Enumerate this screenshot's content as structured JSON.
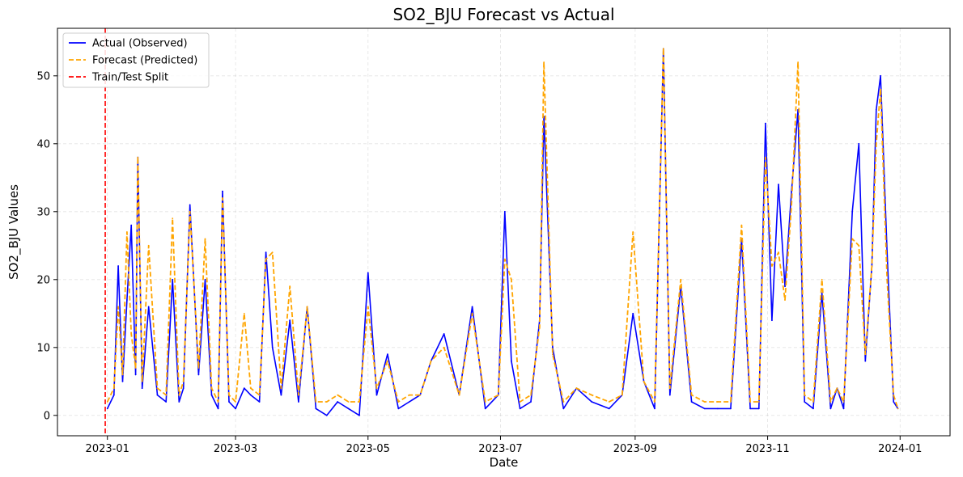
{
  "chart_data": {
    "type": "line",
    "title": "SO2_BJU Forecast vs Actual",
    "xlabel": "Date",
    "ylabel": "SO2_BJU Values",
    "xlim": [
      "2022-12-09",
      "2024-01-24"
    ],
    "ylim": [
      -3,
      57
    ],
    "x_ticks": [
      "2023-01",
      "2023-03",
      "2023-05",
      "2023-07",
      "2023-09",
      "2023-11",
      "2024-01"
    ],
    "y_ticks": [
      0,
      10,
      20,
      30,
      40,
      50
    ],
    "grid": true,
    "legend_position": "top-left",
    "colors": {
      "actual": "#0000ff",
      "forecast": "#ffa500",
      "split": "#ff0000"
    },
    "split_date": "2022-12-31",
    "legend": [
      "Actual (Observed)",
      "Forecast (Predicted)",
      "Train/Test Split"
    ],
    "series": [
      {
        "name": "Actual (Observed)",
        "x": [
          "2023-01-01",
          "2023-01-04",
          "2023-01-06",
          "2023-01-08",
          "2023-01-10",
          "2023-01-12",
          "2023-01-14",
          "2023-01-15",
          "2023-01-17",
          "2023-01-20",
          "2023-01-24",
          "2023-01-28",
          "2023-01-31",
          "2023-02-03",
          "2023-02-05",
          "2023-02-08",
          "2023-02-12",
          "2023-02-15",
          "2023-02-18",
          "2023-02-21",
          "2023-02-23",
          "2023-02-26",
          "2023-03-01",
          "2023-03-05",
          "2023-03-08",
          "2023-03-12",
          "2023-03-15",
          "2023-03-18",
          "2023-03-22",
          "2023-03-26",
          "2023-03-30",
          "2023-04-03",
          "2023-04-07",
          "2023-04-12",
          "2023-04-17",
          "2023-04-22",
          "2023-04-27",
          "2023-05-01",
          "2023-05-05",
          "2023-05-10",
          "2023-05-15",
          "2023-05-20",
          "2023-05-25",
          "2023-05-30",
          "2023-06-05",
          "2023-06-12",
          "2023-06-18",
          "2023-06-24",
          "2023-06-30",
          "2023-07-03",
          "2023-07-06",
          "2023-07-10",
          "2023-07-15",
          "2023-07-19",
          "2023-07-21",
          "2023-07-25",
          "2023-07-30",
          "2023-08-05",
          "2023-08-12",
          "2023-08-20",
          "2023-08-26",
          "2023-08-31",
          "2023-09-05",
          "2023-09-10",
          "2023-09-14",
          "2023-09-17",
          "2023-09-22",
          "2023-09-27",
          "2023-10-03",
          "2023-10-09",
          "2023-10-15",
          "2023-10-20",
          "2023-10-24",
          "2023-10-28",
          "2023-10-31",
          "2023-11-03",
          "2023-11-06",
          "2023-11-09",
          "2023-11-12",
          "2023-11-15",
          "2023-11-18",
          "2023-11-22",
          "2023-11-26",
          "2023-11-30",
          "2023-12-03",
          "2023-12-06",
          "2023-12-10",
          "2023-12-13",
          "2023-12-16",
          "2023-12-19",
          "2023-12-21",
          "2023-12-23",
          "2023-12-26",
          "2023-12-29",
          "2023-12-31"
        ],
        "values": [
          1,
          3,
          22,
          5,
          17,
          28,
          6,
          38,
          4,
          16,
          3,
          2,
          20,
          2,
          4,
          31,
          6,
          20,
          3,
          1,
          33,
          2,
          1,
          4,
          3,
          2,
          24,
          10,
          3,
          14,
          2,
          16,
          1,
          0,
          2,
          1,
          0,
          21,
          3,
          9,
          1,
          2,
          3,
          8,
          12,
          3,
          16,
          1,
          3,
          30,
          8,
          1,
          2,
          14,
          44,
          10,
          1,
          4,
          2,
          1,
          3,
          15,
          5,
          1,
          54,
          3,
          19,
          2,
          1,
          1,
          1,
          26,
          1,
          1,
          43,
          14,
          34,
          19,
          33,
          45,
          2,
          1,
          18,
          1,
          4,
          1,
          30,
          40,
          8,
          22,
          45,
          50,
          24,
          2,
          1
        ]
      },
      {
        "name": "Forecast (Predicted)",
        "x": [
          "2023-01-01",
          "2023-01-04",
          "2023-01-06",
          "2023-01-08",
          "2023-01-10",
          "2023-01-12",
          "2023-01-14",
          "2023-01-15",
          "2023-01-17",
          "2023-01-20",
          "2023-01-24",
          "2023-01-28",
          "2023-01-31",
          "2023-02-03",
          "2023-02-05",
          "2023-02-08",
          "2023-02-12",
          "2023-02-15",
          "2023-02-18",
          "2023-02-21",
          "2023-02-23",
          "2023-02-26",
          "2023-03-01",
          "2023-03-05",
          "2023-03-08",
          "2023-03-12",
          "2023-03-15",
          "2023-03-18",
          "2023-03-22",
          "2023-03-26",
          "2023-03-30",
          "2023-04-03",
          "2023-04-07",
          "2023-04-12",
          "2023-04-17",
          "2023-04-22",
          "2023-04-27",
          "2023-05-01",
          "2023-05-05",
          "2023-05-10",
          "2023-05-15",
          "2023-05-20",
          "2023-05-25",
          "2023-05-30",
          "2023-06-05",
          "2023-06-12",
          "2023-06-18",
          "2023-06-24",
          "2023-06-30",
          "2023-07-03",
          "2023-07-06",
          "2023-07-10",
          "2023-07-15",
          "2023-07-19",
          "2023-07-21",
          "2023-07-25",
          "2023-07-30",
          "2023-08-05",
          "2023-08-12",
          "2023-08-20",
          "2023-08-26",
          "2023-08-31",
          "2023-09-05",
          "2023-09-10",
          "2023-09-14",
          "2023-09-17",
          "2023-09-22",
          "2023-09-27",
          "2023-10-03",
          "2023-10-09",
          "2023-10-15",
          "2023-10-20",
          "2023-10-24",
          "2023-10-28",
          "2023-10-31",
          "2023-11-03",
          "2023-11-06",
          "2023-11-09",
          "2023-11-12",
          "2023-11-15",
          "2023-11-18",
          "2023-11-22",
          "2023-11-26",
          "2023-11-30",
          "2023-12-03",
          "2023-12-06",
          "2023-12-10",
          "2023-12-13",
          "2023-12-16",
          "2023-12-19",
          "2023-12-21",
          "2023-12-23",
          "2023-12-26",
          "2023-12-29",
          "2023-12-31"
        ],
        "values": [
          2,
          4,
          16,
          6,
          27,
          12,
          7,
          38,
          5,
          25,
          4,
          3,
          29,
          3,
          5,
          30,
          7,
          26,
          4,
          2,
          32,
          3,
          2,
          15,
          4,
          3,
          23,
          24,
          4,
          19,
          3,
          16,
          2,
          2,
          3,
          2,
          2,
          16,
          4,
          8,
          2,
          3,
          3,
          8,
          10,
          3,
          15,
          2,
          3,
          23,
          20,
          2,
          3,
          13,
          52,
          9,
          2,
          4,
          3,
          2,
          3,
          27,
          5,
          2,
          54,
          4,
          20,
          3,
          2,
          2,
          2,
          28,
          2,
          2,
          38,
          22,
          24,
          17,
          31,
          52,
          3,
          2,
          20,
          2,
          4,
          2,
          26,
          25,
          9,
          22,
          40,
          48,
          20,
          3,
          1
        ]
      }
    ]
  }
}
